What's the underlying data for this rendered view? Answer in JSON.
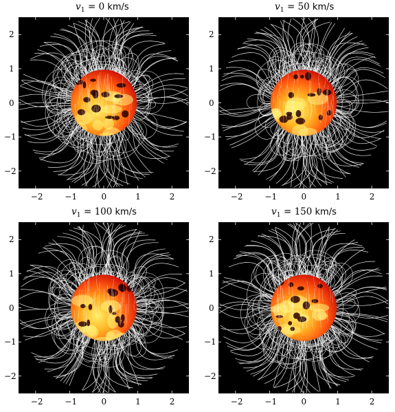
{
  "panels": [
    {
      "id": "p0",
      "title_var": "v",
      "title_sub": "1",
      "title_eq": " = ",
      "title_value": "0",
      "title_unit": " km/s",
      "seed": 11
    },
    {
      "id": "p1",
      "title_var": "v",
      "title_sub": "1",
      "title_eq": " = ",
      "title_value": "50",
      "title_unit": " km/s",
      "seed": 23
    },
    {
      "id": "p2",
      "title_var": "v",
      "title_sub": "1",
      "title_eq": " = ",
      "title_value": "100",
      "title_unit": " km/s",
      "seed": 37
    },
    {
      "id": "p3",
      "title_var": "v",
      "title_sub": "1",
      "title_eq": " = ",
      "title_value": "150",
      "title_unit": " km/s",
      "seed": 53
    }
  ],
  "x_ticks": [
    "−2",
    "−1",
    "0",
    "1",
    "2"
  ],
  "y_ticks": [
    "2",
    "1",
    "0",
    "−1",
    "−2"
  ],
  "axis_range": [
    -2.5,
    2.5
  ],
  "colors": {
    "background": "#000000",
    "field_lines": "#ffffff",
    "star_hot": "#ffee66",
    "star_mid": "#ff5a10",
    "star_cool": "#c40000"
  }
}
